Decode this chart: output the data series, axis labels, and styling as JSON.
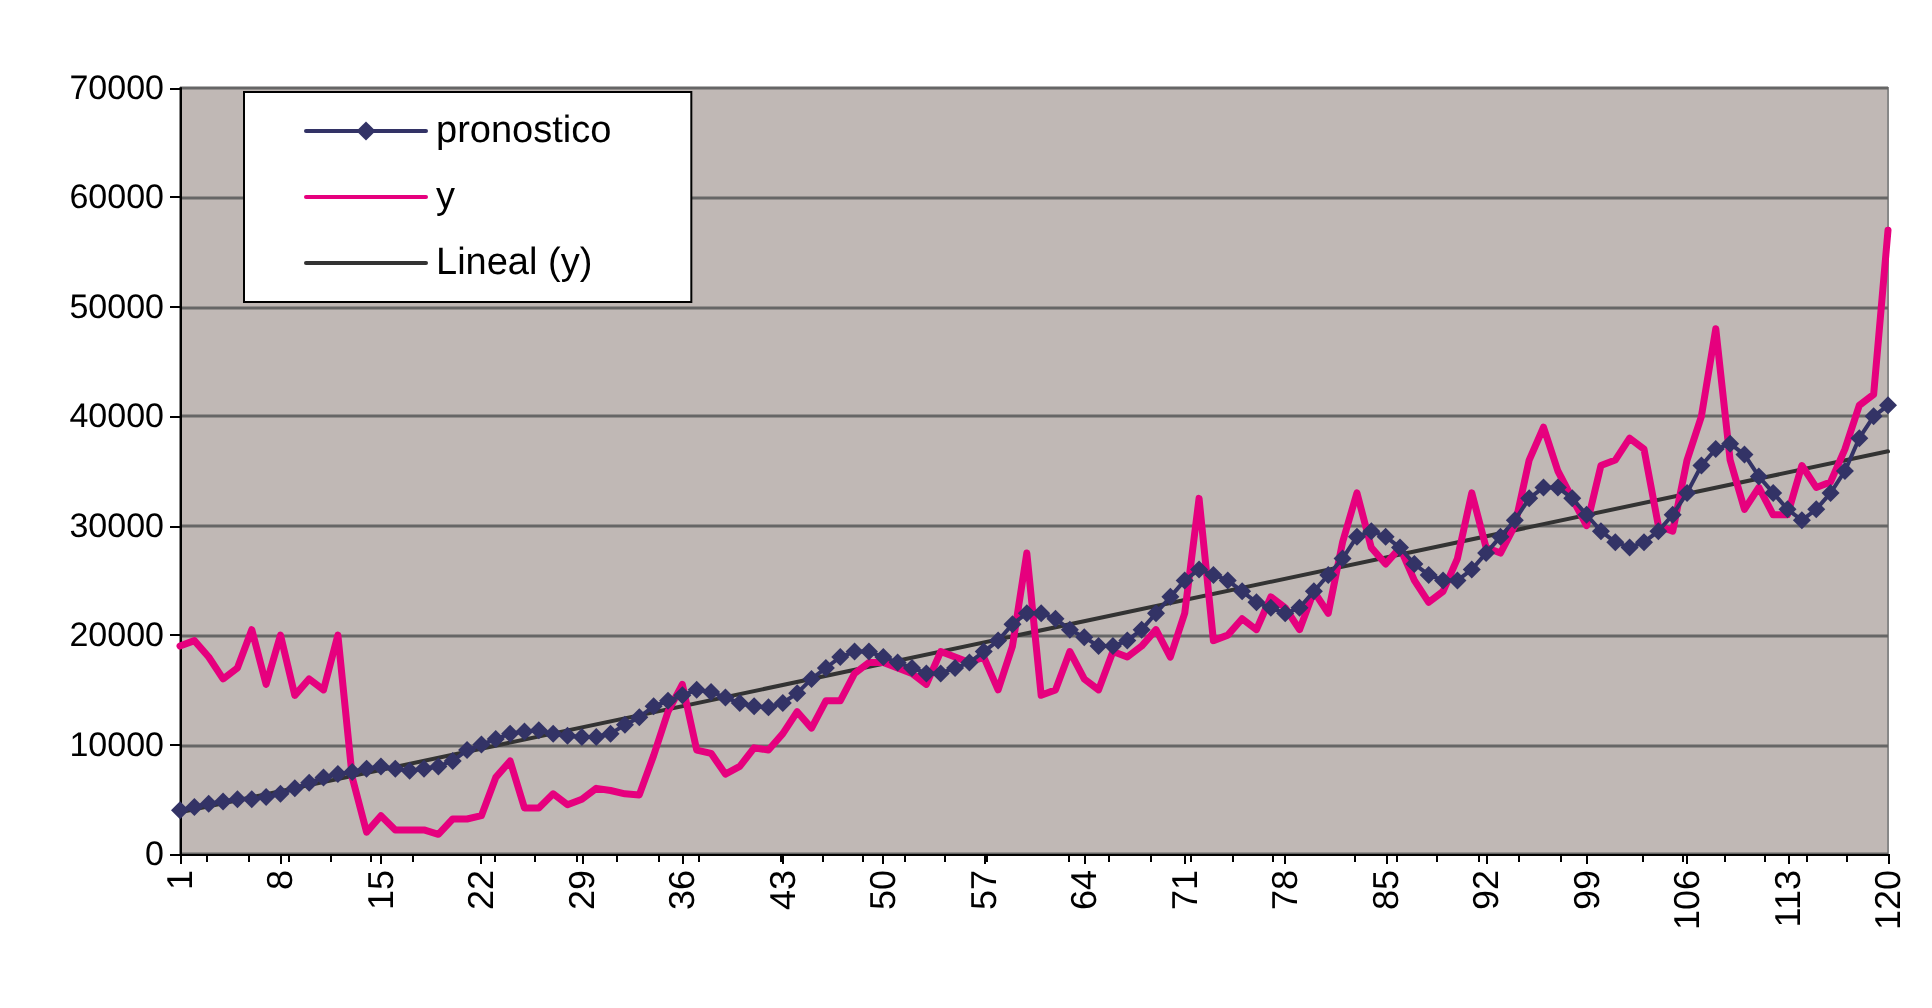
{
  "chart_data": {
    "type": "line",
    "xlim": [
      1,
      120
    ],
    "xticks": [
      1,
      8,
      15,
      22,
      29,
      36,
      43,
      50,
      57,
      64,
      71,
      78,
      85,
      92,
      99,
      106,
      113,
      120
    ],
    "ylim": [
      0,
      70000
    ],
    "yticks": [
      0,
      10000,
      20000,
      30000,
      40000,
      50000,
      60000,
      70000
    ],
    "grid": "y",
    "legend": "top left",
    "x": [
      1,
      2,
      3,
      4,
      5,
      6,
      7,
      8,
      9,
      10,
      11,
      12,
      13,
      14,
      15,
      16,
      17,
      18,
      19,
      20,
      21,
      22,
      23,
      24,
      25,
      26,
      27,
      28,
      29,
      30,
      31,
      32,
      33,
      34,
      35,
      36,
      37,
      38,
      39,
      40,
      41,
      42,
      43,
      44,
      45,
      46,
      47,
      48,
      49,
      50,
      51,
      52,
      53,
      54,
      55,
      56,
      57,
      58,
      59,
      60,
      61,
      62,
      63,
      64,
      65,
      66,
      67,
      68,
      69,
      70,
      71,
      72,
      73,
      74,
      75,
      76,
      77,
      78,
      79,
      80,
      81,
      82,
      83,
      84,
      85,
      86,
      87,
      88,
      89,
      90,
      91,
      92,
      93,
      94,
      95,
      96,
      97,
      98,
      99,
      100,
      101,
      102,
      103,
      104,
      105,
      106,
      107,
      108,
      109,
      110,
      111,
      112,
      113,
      114,
      115,
      116,
      117,
      118,
      119,
      120
    ],
    "series": [
      {
        "name": "pronostico",
        "color": "#333366",
        "marker": "diamond",
        "values": [
          4000,
          4300,
          4600,
          4800,
          5000,
          5000,
          5200,
          5500,
          6000,
          6500,
          7000,
          7300,
          7500,
          7800,
          8000,
          7800,
          7600,
          7800,
          8000,
          8500,
          9500,
          10000,
          10500,
          11000,
          11200,
          11300,
          11000,
          10800,
          10700,
          10700,
          11000,
          11800,
          12500,
          13500,
          14000,
          14500,
          15000,
          14800,
          14300,
          13800,
          13500,
          13400,
          13800,
          14700,
          16000,
          17000,
          18000,
          18500,
          18500,
          18000,
          17500,
          17000,
          16500,
          16500,
          17000,
          17500,
          18500,
          19500,
          21000,
          22000,
          22000,
          21500,
          20500,
          19800,
          19000,
          19000,
          19500,
          20500,
          22000,
          23500,
          25000,
          26000,
          25500,
          25000,
          24000,
          23000,
          22500,
          22000,
          22500,
          24000,
          25500,
          27000,
          29000,
          29500,
          29000,
          28000,
          26500,
          25500,
          25000,
          25000,
          26000,
          27500,
          29000,
          30500,
          32500,
          33500,
          33500,
          32500,
          31000,
          29500,
          28500,
          28000,
          28500,
          29500,
          31000,
          33000,
          35500,
          37000,
          37500,
          36500,
          34500,
          33000,
          31500,
          30500,
          31500,
          33000,
          35000,
          38000,
          40000,
          41000
        ]
      },
      {
        "name": "y",
        "color": "#e6007e",
        "marker": "none",
        "values": [
          19000,
          19500,
          18000,
          16000,
          17000,
          20500,
          15500,
          20000,
          14500,
          16000,
          15000,
          20000,
          7000,
          2000,
          3500,
          2200,
          2200,
          2200,
          1800,
          3200,
          3200,
          3500,
          7000,
          8500,
          4200,
          4200,
          5500,
          4500,
          5000,
          6000,
          5800,
          5500,
          5400,
          9000,
          13000,
          15500,
          9500,
          9200,
          7300,
          8000,
          9700,
          9500,
          11000,
          13000,
          11500,
          14000,
          14000,
          16500,
          17500,
          17500,
          17000,
          16500,
          15500,
          18500,
          18000,
          17500,
          18000,
          15000,
          19000,
          27500,
          14500,
          15000,
          18500,
          16000,
          15000,
          18500,
          18000,
          19000,
          20500,
          18000,
          22000,
          32500,
          19500,
          20000,
          21500,
          20500,
          23500,
          22500,
          20500,
          24000,
          22000,
          28500,
          33000,
          28000,
          26500,
          28000,
          25000,
          23000,
          24000,
          27000,
          33000,
          28000,
          27500,
          30000,
          36000,
          39000,
          35000,
          32500,
          30000,
          35500,
          36000,
          38000,
          37000,
          30000,
          29500,
          36000,
          40000,
          48000,
          36000,
          31500,
          33500,
          31000,
          31000,
          35500,
          33500,
          34000,
          37000,
          41000,
          42000,
          57000
        ]
      },
      {
        "name": "Lineal (y)",
        "color": "#333333",
        "marker": "none",
        "x": [
          1,
          120
        ],
        "values": [
          3800,
          36800
        ]
      }
    ]
  }
}
